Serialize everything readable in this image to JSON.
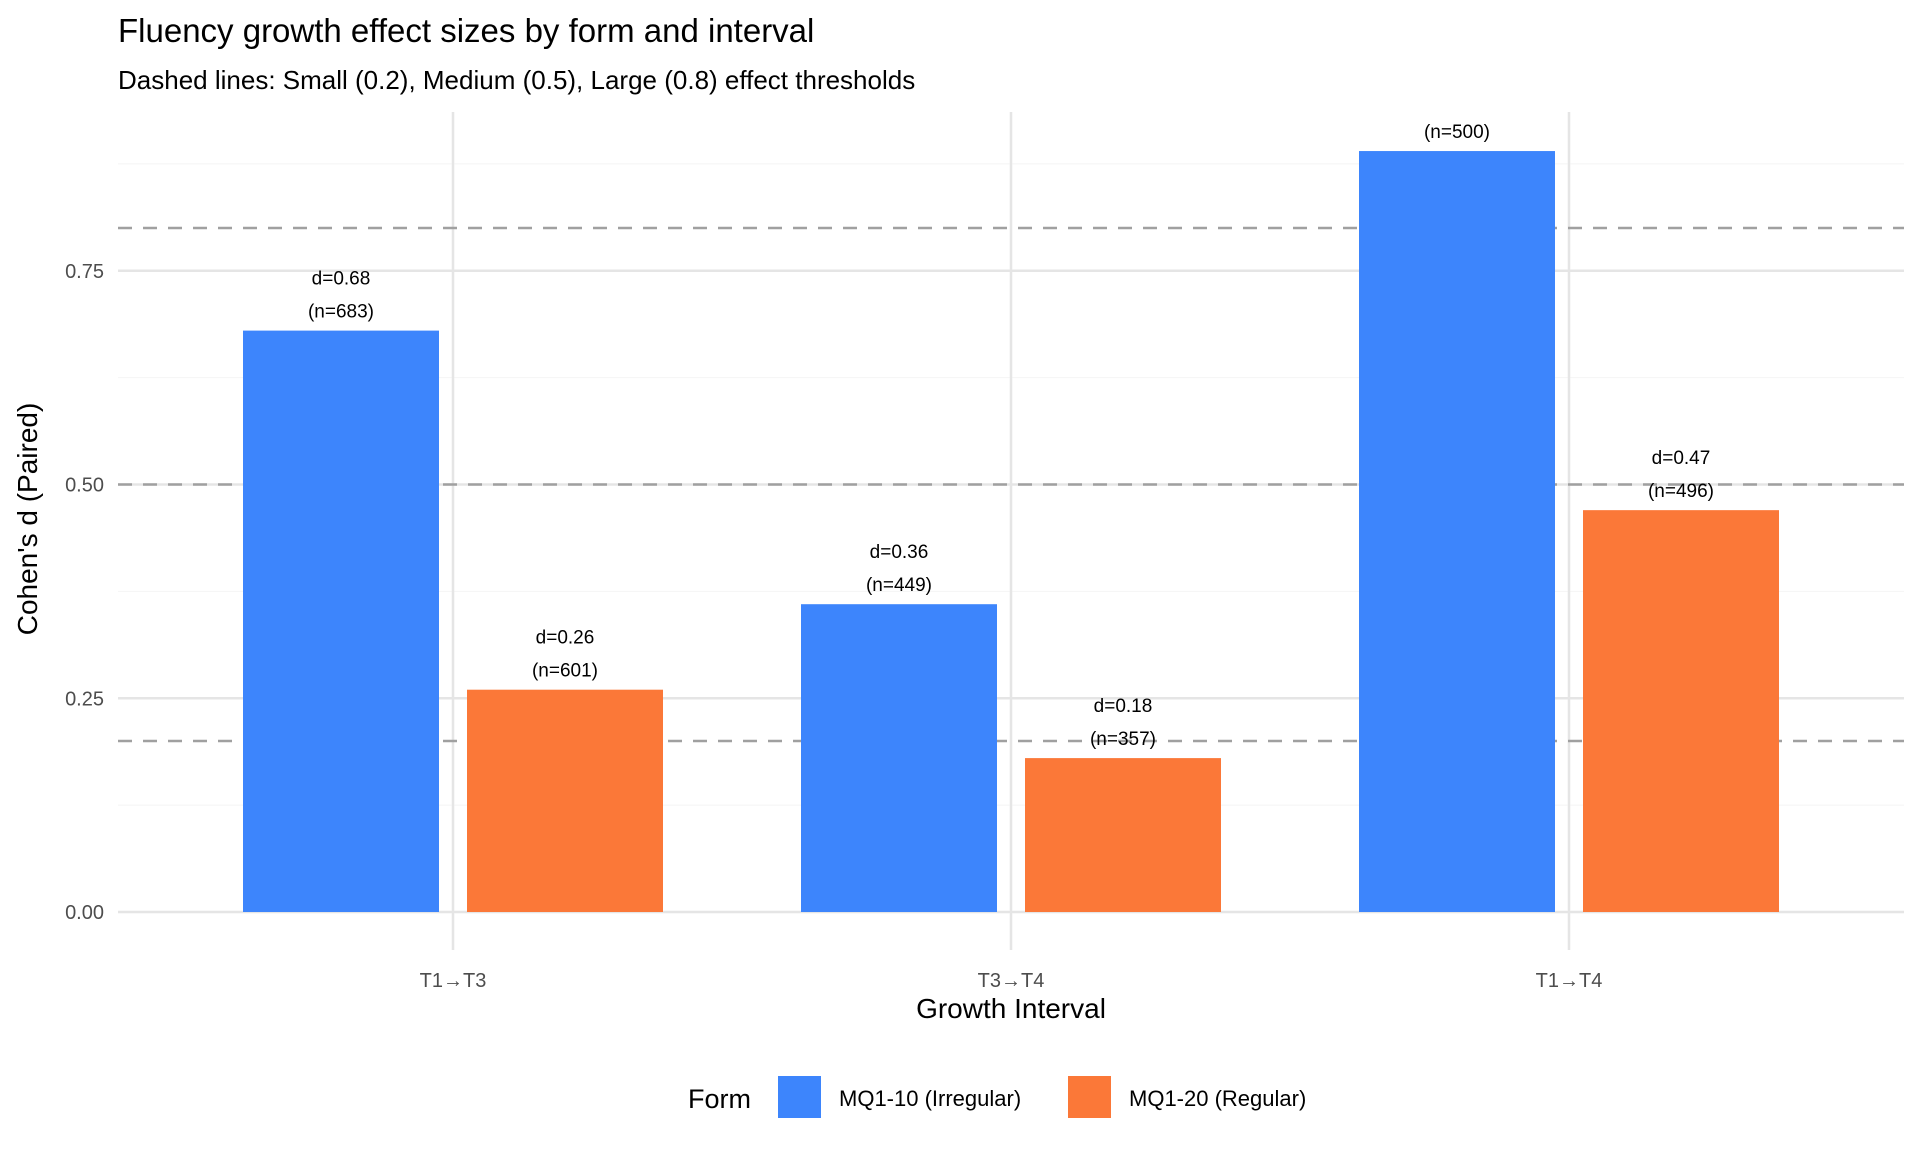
{
  "chart_data": {
    "type": "bar",
    "title": "Fluency growth effect sizes by form and interval",
    "subtitle": "Dashed lines: Small (0.2), Medium (0.5), Large (0.8) effect thresholds",
    "xlabel": "Growth Interval",
    "ylabel": "Cohen's d (Paired)",
    "categories": [
      "T1→T3",
      "T3→T4",
      "T1→T4"
    ],
    "ylim": [
      0,
      0.9
    ],
    "yticks": [
      0.0,
      0.25,
      0.5,
      0.75
    ],
    "ytick_labels": [
      "0.00",
      "0.25",
      "0.50",
      "0.75"
    ],
    "thresholds": [
      0.2,
      0.5,
      0.8
    ],
    "grid": true,
    "legend": {
      "title": "Form",
      "position": "bottom"
    },
    "series": [
      {
        "name": "MQ1-10 (Irregular)",
        "color": "#3d85fc",
        "values": [
          0.68,
          0.36,
          0.89
        ],
        "labels": [
          "d=0.68",
          "d=0.36",
          ""
        ],
        "n_labels": [
          "(n=683)",
          "(n=449)",
          "(n=500)"
        ]
      },
      {
        "name": "MQ1-20 (Regular)",
        "color": "#fb7838",
        "values": [
          0.26,
          0.18,
          0.47
        ],
        "labels": [
          "d=0.26",
          "d=0.18",
          "d=0.47"
        ],
        "n_labels": [
          "(n=601)",
          "(n=357)",
          "(n=496)"
        ]
      }
    ]
  }
}
